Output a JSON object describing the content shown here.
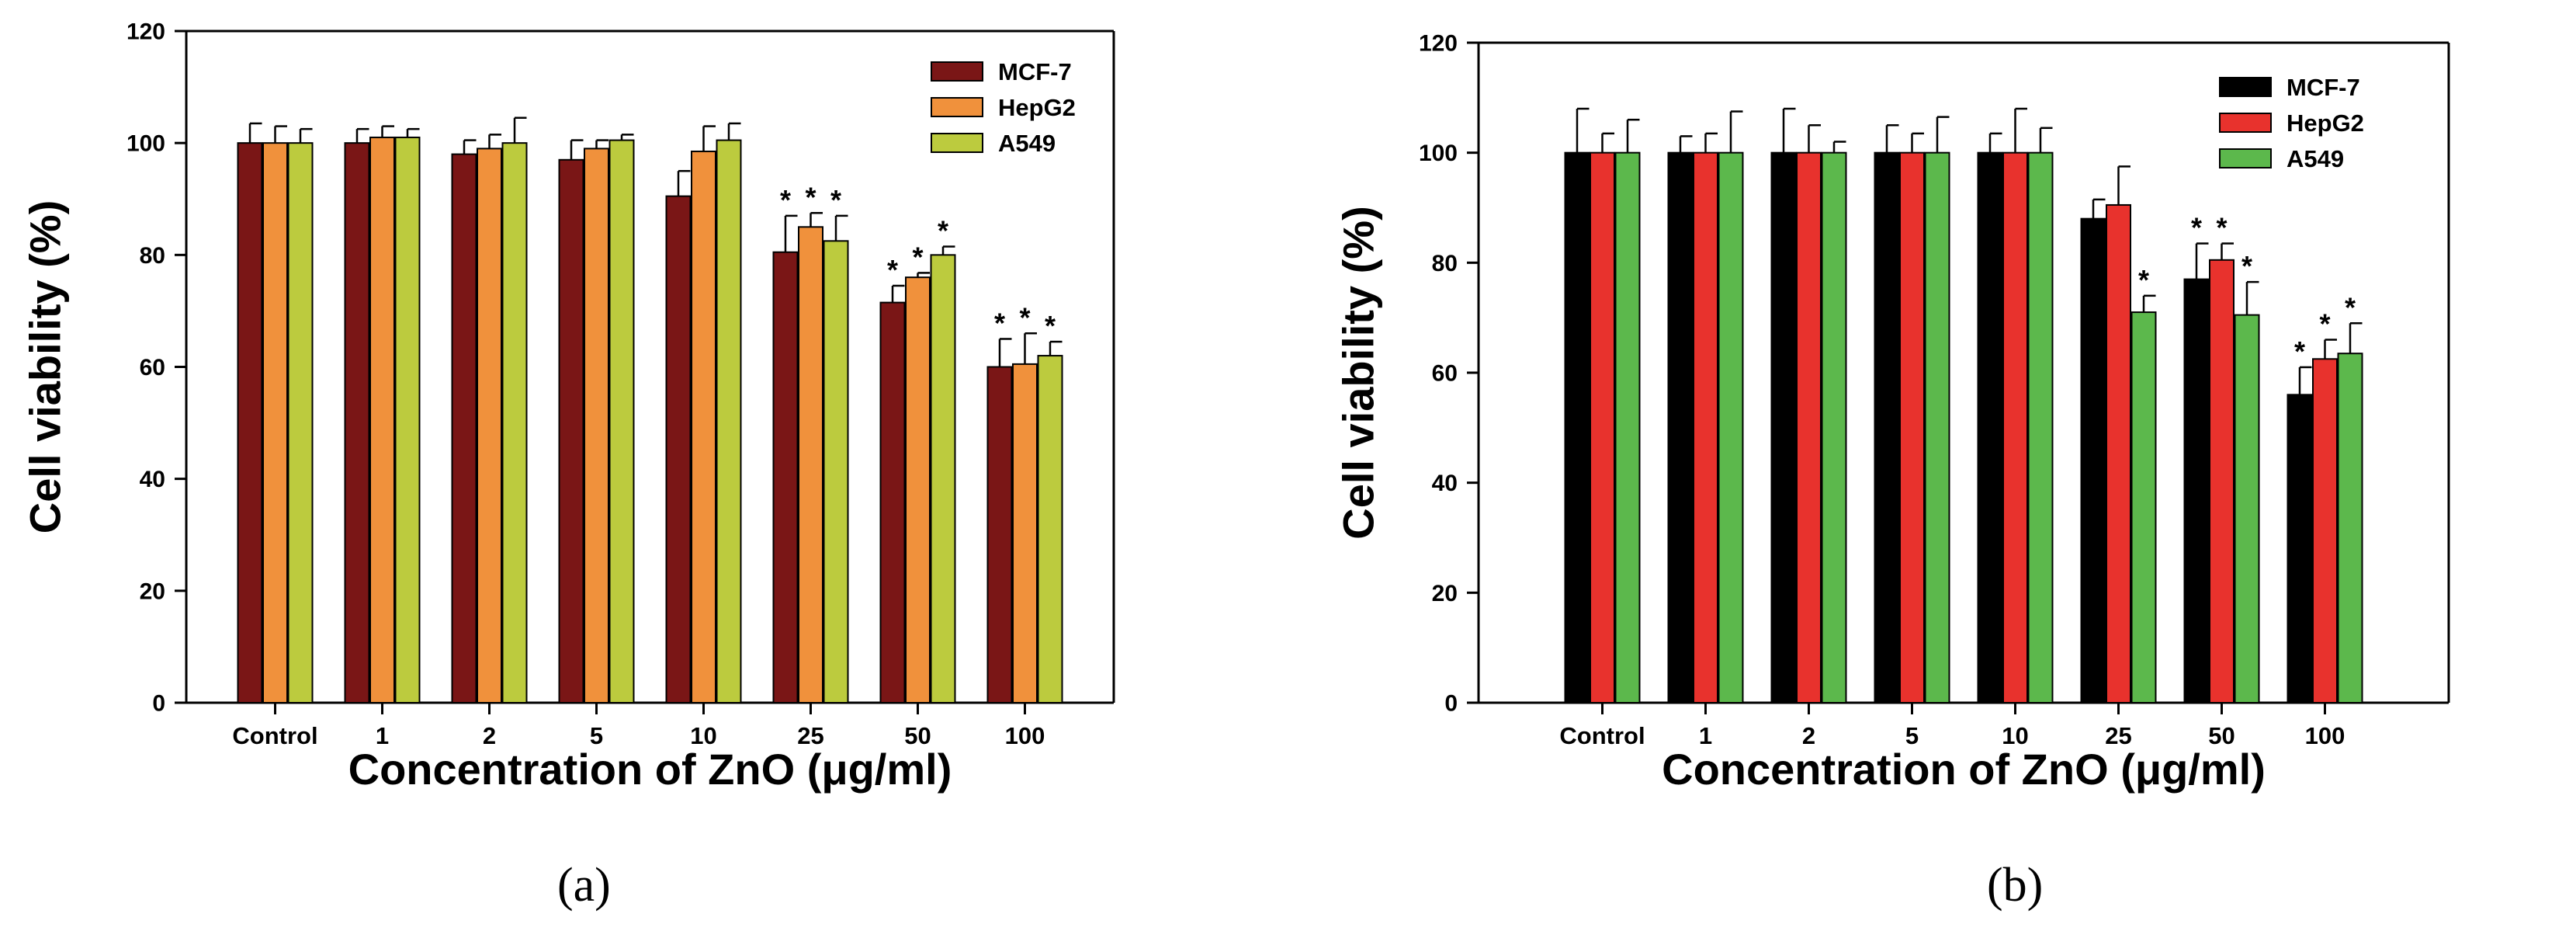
{
  "chart_data": [
    {
      "type": "bar",
      "title": "",
      "xlabel": "Concentration of ZnO (μg/ml)",
      "ylabel": "Cell viability (%)",
      "ylim": [
        0,
        120
      ],
      "yticks": [
        "0",
        "20",
        "40",
        "60",
        "80",
        "100",
        "120"
      ],
      "categories": [
        "Control",
        "1",
        "2",
        "5",
        "10",
        "25",
        "50",
        "100"
      ],
      "legend_position": "top-right",
      "series": [
        {
          "name": "MCF-7",
          "color": "#7a1616",
          "values": [
            100,
            100,
            98,
            97,
            90.5,
            80.5,
            71.5,
            60
          ],
          "errors": [
            3.5,
            2.5,
            2.5,
            3.5,
            4.5,
            6.5,
            3,
            5
          ]
        },
        {
          "name": "HepG2",
          "color": "#f0913c",
          "values": [
            100,
            101,
            99,
            99,
            98.5,
            85,
            76,
            60.5
          ],
          "errors": [
            3,
            2,
            2.5,
            1.5,
            4.5,
            2.5,
            0.8,
            5.5
          ]
        },
        {
          "name": "A549",
          "color": "#bccb3e",
          "values": [
            100,
            101,
            100,
            100.5,
            100.5,
            82.5,
            80,
            62
          ],
          "errors": [
            2.5,
            1.5,
            4.5,
            1,
            3,
            4.5,
            1.5,
            2.5
          ]
        }
      ],
      "significance": [
        [
          0,
          0,
          0,
          0,
          0,
          1,
          1,
          1
        ],
        [
          0,
          0,
          0,
          0,
          0,
          1,
          1,
          1
        ],
        [
          0,
          0,
          0,
          0,
          0,
          1,
          1,
          1
        ]
      ],
      "significance_marker": "*",
      "panel_label": "(a)"
    },
    {
      "type": "bar",
      "title": "",
      "xlabel": "Concentration of ZnO (μg/ml)",
      "ylabel": "Cell viability (%)",
      "ylim": [
        0,
        120
      ],
      "yticks": [
        "0",
        "20",
        "40",
        "60",
        "80",
        "100",
        "120"
      ],
      "categories": [
        "Control",
        "1",
        "2",
        "5",
        "10",
        "25",
        "50",
        "100"
      ],
      "legend_position": "top-right",
      "series": [
        {
          "name": "MCF-7",
          "color": "#000000",
          "values": [
            100,
            100,
            100,
            100,
            100,
            88,
            77,
            56
          ],
          "errors": [
            8,
            3,
            8,
            5,
            3.5,
            3.5,
            6.5,
            5
          ]
        },
        {
          "name": "HepG2",
          "color": "#e8322d",
          "values": [
            100,
            100,
            100,
            100,
            100,
            90.5,
            80.5,
            62.5
          ],
          "errors": [
            3.5,
            3.5,
            5,
            3.5,
            8,
            7,
            3,
            3.5
          ]
        },
        {
          "name": "A549",
          "color": "#5cb84c",
          "values": [
            100,
            100,
            100,
            100,
            100,
            71,
            70.5,
            63.5
          ],
          "errors": [
            6,
            7.5,
            2,
            6.5,
            4.5,
            3,
            6,
            5.5
          ]
        }
      ],
      "significance": [
        [
          0,
          0,
          0,
          0,
          0,
          0,
          1,
          1
        ],
        [
          0,
          0,
          0,
          0,
          0,
          0,
          1,
          1
        ],
        [
          0,
          0,
          0,
          0,
          0,
          1,
          1,
          1
        ]
      ],
      "significance_marker": "*",
      "panel_label": "(b)"
    }
  ]
}
